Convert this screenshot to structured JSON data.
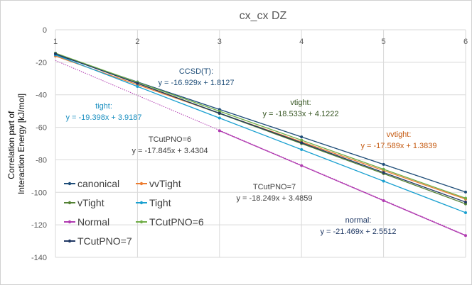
{
  "chart_data": {
    "type": "line",
    "title": "cx_cx DZ",
    "xlabel": "",
    "ylabel_lines": [
      "Correlation part of",
      "Interaction Energy  [kJ/mol]"
    ],
    "xlim": [
      1,
      6
    ],
    "ylim": [
      -140,
      0
    ],
    "xticks": [
      1,
      2,
      3,
      4,
      5,
      6
    ],
    "yticks": [
      0,
      -20,
      -40,
      -60,
      -80,
      -100,
      -120,
      -140
    ],
    "grid": true,
    "series": [
      {
        "name": "canonical",
        "color": "#1f4e79",
        "x": [
          1,
          2,
          3,
          4,
          5,
          6
        ],
        "y": [
          -15.2,
          -32.1,
          -49.0,
          -65.9,
          -82.8,
          -99.8
        ]
      },
      {
        "name": "vvTight",
        "color": "#ed7d31",
        "x": [
          1,
          2,
          3,
          4,
          5,
          6
        ],
        "y": [
          -16.2,
          -33.8,
          -51.4,
          -68.9,
          -86.6,
          -104.2
        ]
      },
      {
        "name": "vTight",
        "color": "#548235",
        "x": [
          1,
          2,
          3,
          4,
          5,
          6
        ],
        "y": [
          -14.4,
          -32.9,
          -51.5,
          -70.0,
          -88.5,
          -107.1
        ]
      },
      {
        "name": "Tight",
        "color": "#1aa0d0",
        "x": [
          1,
          2,
          3,
          4,
          5,
          6
        ],
        "y": [
          -15.5,
          -34.9,
          -54.3,
          -73.7,
          -93.1,
          -112.5
        ]
      },
      {
        "name": "Normal",
        "color": "#b03ab0",
        "x": [
          3,
          4,
          5,
          6
        ],
        "y": [
          -62.1,
          -83.6,
          -105.1,
          -126.6
        ]
      },
      {
        "name": "TCutPNO=6",
        "color": "#70ad47",
        "x": [
          1,
          2,
          3,
          4,
          5,
          6
        ],
        "y": [
          -14.4,
          -32.3,
          -50.1,
          -67.9,
          -85.8,
          -103.6
        ]
      },
      {
        "name": "TCutPNO=7",
        "color": "#203864",
        "x": [
          1,
          2,
          3,
          4,
          5,
          6
        ],
        "y": [
          -14.8,
          -33.0,
          -51.3,
          -69.5,
          -87.8,
          -106.0
        ]
      }
    ],
    "trendlines": [
      {
        "for": "canonical",
        "color": "#1f4e79",
        "x": [
          1,
          6
        ],
        "y": [
          -15.1,
          -99.8
        ]
      },
      {
        "for": "Normal",
        "color": "#b03ab0",
        "x": [
          1,
          6
        ],
        "y": [
          -18.9,
          -126.3
        ]
      }
    ],
    "annotations": [
      {
        "lines": [
          "CCSD(T):",
          "y = -16.929x + 1.8127"
        ],
        "color": "#1f4e79"
      },
      {
        "lines": [
          "tight:",
          "y = -19.398x + 3.9187"
        ],
        "color": "#1a8fc0"
      },
      {
        "lines": [
          "vtight:",
          "y = -18.533x + 4.1222"
        ],
        "color": "#375623"
      },
      {
        "lines": [
          "vvtight:",
          "y = -17.589x + 1.3839"
        ],
        "color": "#c55a11"
      },
      {
        "lines": [
          "TCutPNO=6",
          "y = -17.845x + 3.4304"
        ],
        "color": "#404040"
      },
      {
        "lines": [
          "TCutPNO=7",
          "y = -18.249x + 3.4859"
        ],
        "color": "#404040"
      },
      {
        "lines": [
          "normal:",
          "y = -21.469x + 2.5512"
        ],
        "color": "#1f3864"
      }
    ]
  }
}
